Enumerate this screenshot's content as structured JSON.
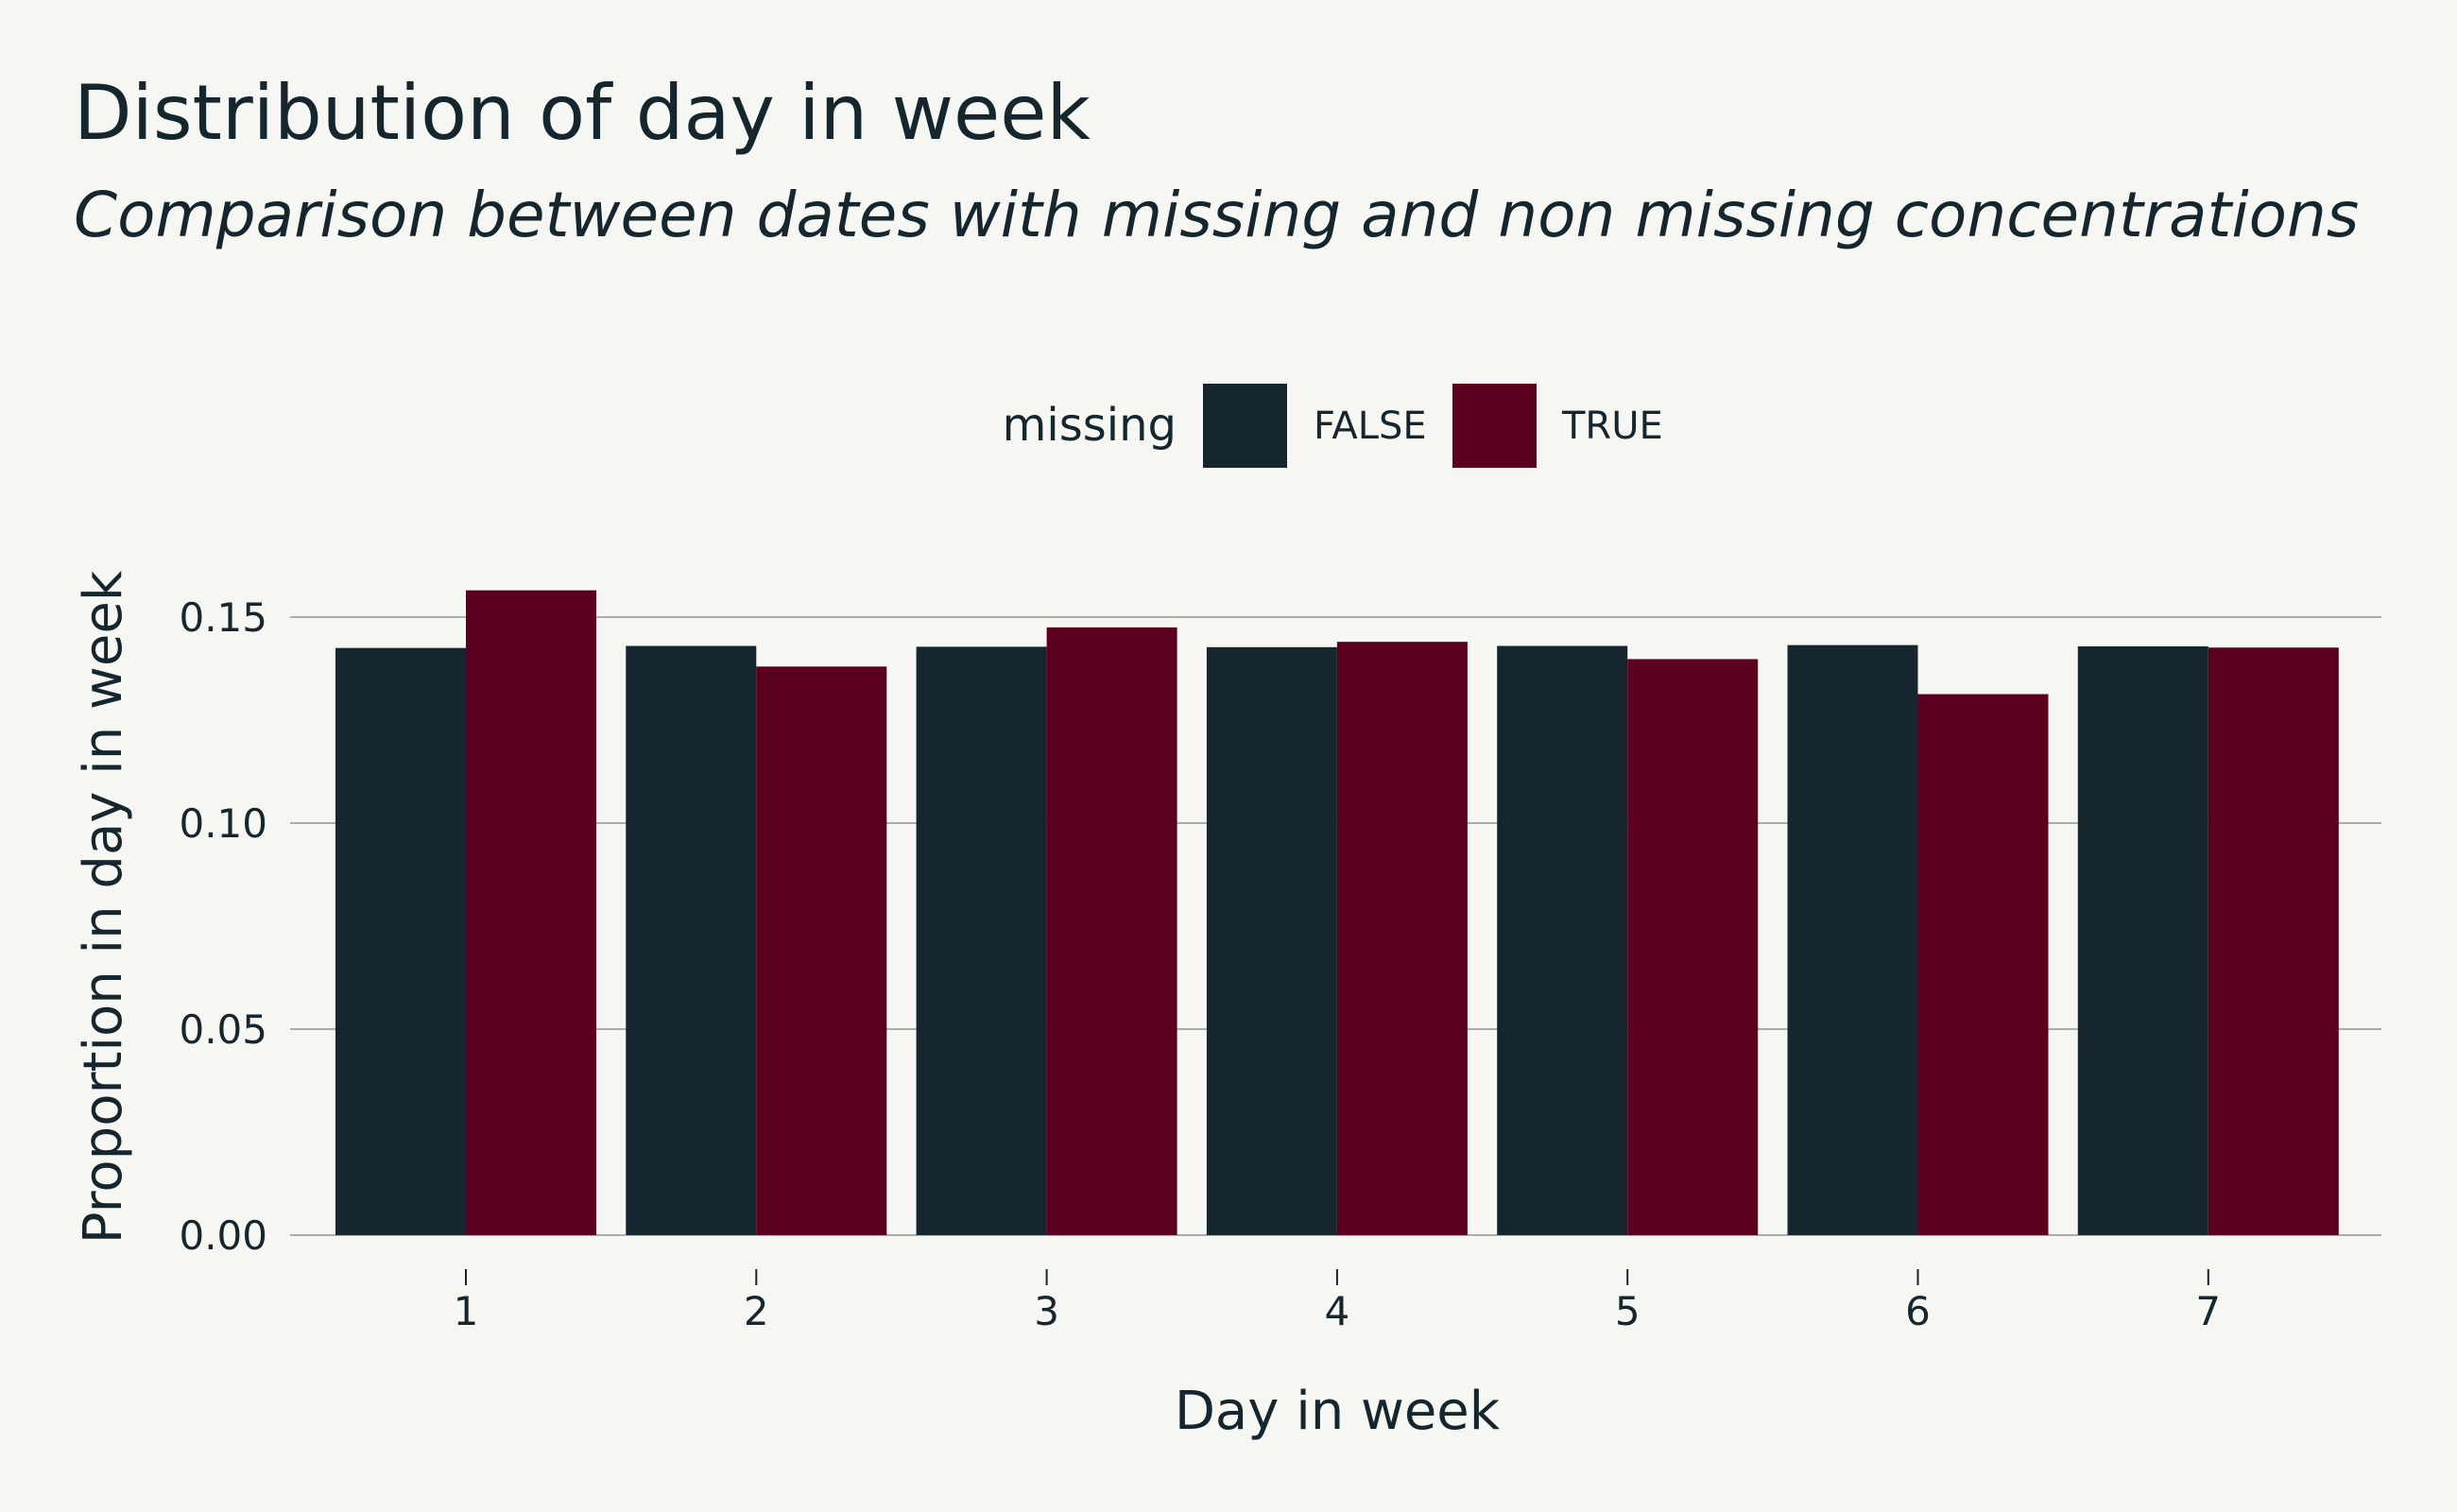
{
  "colors": {
    "background": "#f6f7f3",
    "text": "#15262e",
    "false_series": "#15262e",
    "true_series": "#5c0020",
    "grid": "#a9adab"
  },
  "chart_data": {
    "type": "bar",
    "title": "Distribution of day in week",
    "subtitle": "Comparison between dates with missing and non missing concentrations",
    "xlabel": "Day in week",
    "ylabel": "Proportion in day in week",
    "legend": {
      "title": "missing",
      "position": "top"
    },
    "categories": [
      "1",
      "2",
      "3",
      "4",
      "5",
      "6",
      "7"
    ],
    "series": [
      {
        "name": "FALSE",
        "color": "#15262e",
        "values": [
          0.1425,
          0.143,
          0.1428,
          0.1427,
          0.143,
          0.1432,
          0.1429
        ]
      },
      {
        "name": "TRUE",
        "color": "#5c0020",
        "values": [
          0.1565,
          0.138,
          0.1475,
          0.144,
          0.1398,
          0.1313,
          0.1426
        ]
      }
    ],
    "ylim": [
      0,
      0.16
    ],
    "yticks": [
      0,
      0.05,
      0.1,
      0.15
    ],
    "ytick_labels": [
      "0.00",
      "0.05",
      "0.10",
      "0.15"
    ],
    "grid": true
  }
}
